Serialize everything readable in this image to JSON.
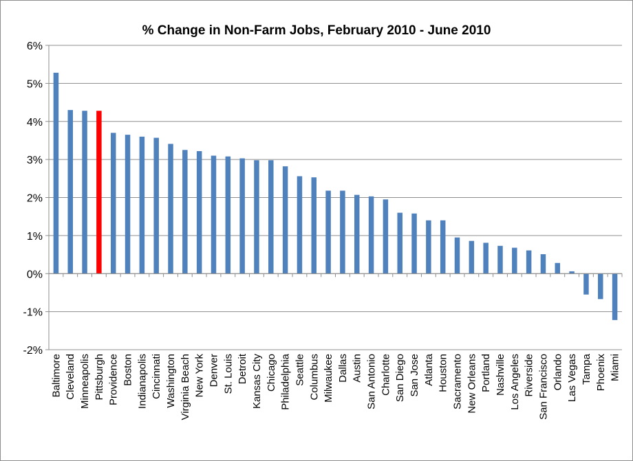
{
  "chart_data": {
    "type": "bar",
    "title": "% Change in Non-Farm Jobs, February 2010 - June 2010",
    "xlabel": "",
    "ylabel": "",
    "ylim": [
      -2,
      6
    ],
    "yticks": [
      "-2%",
      "-1%",
      "0%",
      "1%",
      "2%",
      "3%",
      "4%",
      "5%",
      "6%"
    ],
    "grid": true,
    "legend": "none",
    "categories": [
      "Baltimore",
      "Cleveland",
      "Minneapolis",
      "Pittsburgh",
      "Providence",
      "Boston",
      "Indianapolis",
      "Cincinnati",
      "Washington",
      "Virginia Beach",
      "New York",
      "Denver",
      "St. Louis",
      "Detroit",
      "Kansas City",
      "Chicago",
      "Philadelphia",
      "Seattle",
      "Columbus",
      "Milwaukee",
      "Dallas",
      "Austin",
      "San Antonio",
      "Charlotte",
      "San Diego",
      "San Jose",
      "Atlanta",
      "Houston",
      "Sacramento",
      "New Orleans",
      "Portland",
      "Nashville",
      "Los Angeles",
      "Riverside",
      "San Francisco",
      "Orlando",
      "Las Vegas",
      "Tampa",
      "Phoenix",
      "Miami"
    ],
    "values": [
      5.28,
      4.3,
      4.28,
      4.28,
      3.7,
      3.65,
      3.6,
      3.57,
      3.41,
      3.25,
      3.22,
      3.1,
      3.08,
      3.03,
      2.98,
      2.98,
      2.82,
      2.56,
      2.53,
      2.18,
      2.18,
      2.07,
      2.03,
      1.95,
      1.6,
      1.58,
      1.4,
      1.4,
      0.95,
      0.86,
      0.81,
      0.73,
      0.68,
      0.61,
      0.51,
      0.28,
      0.06,
      -0.55,
      -0.67,
      -1.22
    ],
    "colors": {
      "bar": "#4f81bd",
      "highlight": "#ff0000",
      "grid": "#8c8c8c"
    },
    "highlight_category": "Pittsburgh"
  }
}
